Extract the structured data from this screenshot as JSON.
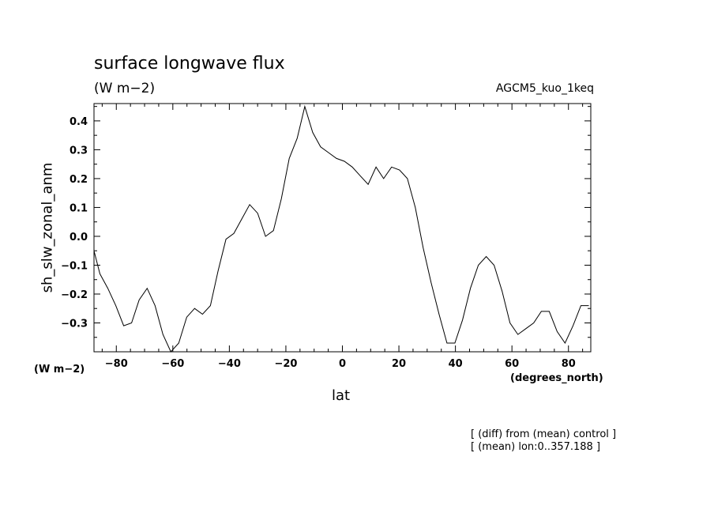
{
  "chart_data": {
    "type": "line",
    "title": "surface longwave flux",
    "subtitle": "(W m−2)",
    "dataset": "AGCM5_kuo_1keq",
    "ylabel": "sh_slw_zonal_anm",
    "xlabel": "lat",
    "y_unit_label": "(W m−2)",
    "x_unit_label": "(degrees_north)",
    "notes": [
      "[ (diff) from (mean) control ]",
      "[ (mean) lon:0..357.188 ]"
    ],
    "xlim": [
      -87.9,
      87.9
    ],
    "ylim": [
      -0.4,
      0.46
    ],
    "xticks": [
      -80,
      -60,
      -40,
      -20,
      0,
      20,
      40,
      60,
      80
    ],
    "xtick_labels": [
      "−80",
      "−60",
      "−40",
      "−20",
      "0",
      "20",
      "40",
      "60",
      "80"
    ],
    "yticks": [
      -0.3,
      -0.2,
      -0.1,
      0.0,
      0.1,
      0.2,
      0.3,
      0.4
    ],
    "ytick_labels": [
      "−0.3",
      "−0.2",
      "−0.1",
      "0.0",
      "0.1",
      "0.2",
      "0.3",
      "0.4"
    ],
    "grid": false,
    "series": [
      {
        "color": "#000000",
        "x": [
          -87.9,
          -85.8,
          -83.0,
          -80.2,
          -77.4,
          -74.6,
          -71.9,
          -69.1,
          -66.3,
          -63.5,
          -60.7,
          -57.9,
          -55.1,
          -52.3,
          -49.5,
          -46.7,
          -44.0,
          -41.2,
          -38.4,
          -35.6,
          -32.8,
          -30.0,
          -27.2,
          -24.4,
          -21.6,
          -18.8,
          -16.0,
          -13.3,
          -10.5,
          -7.7,
          -4.9,
          -2.1,
          0.7,
          3.5,
          6.3,
          9.1,
          11.9,
          14.6,
          17.4,
          20.2,
          23.0,
          25.8,
          28.6,
          31.4,
          34.2,
          37.0,
          39.8,
          42.5,
          45.3,
          48.1,
          50.9,
          53.7,
          56.5,
          59.3,
          62.1,
          64.9,
          67.7,
          70.4,
          73.2,
          76.0,
          78.8,
          81.6,
          84.4,
          87.2
        ],
        "y": [
          -0.05,
          -0.13,
          -0.18,
          -0.24,
          -0.31,
          -0.3,
          -0.22,
          -0.18,
          -0.24,
          -0.34,
          -0.4,
          -0.37,
          -0.28,
          -0.25,
          -0.27,
          -0.24,
          -0.12,
          -0.01,
          0.01,
          0.06,
          0.11,
          0.08,
          0.0,
          0.02,
          0.13,
          0.27,
          0.34,
          0.45,
          0.36,
          0.31,
          0.29,
          0.27,
          0.26,
          0.24,
          0.21,
          0.18,
          0.24,
          0.2,
          0.24,
          0.23,
          0.2,
          0.1,
          -0.04,
          -0.16,
          -0.27,
          -0.37,
          -0.37,
          -0.29,
          -0.18,
          -0.1,
          -0.07,
          -0.1,
          -0.19,
          -0.3,
          -0.34,
          -0.32,
          -0.3,
          -0.26,
          -0.26,
          -0.33,
          -0.37,
          -0.31,
          -0.24,
          -0.24
        ]
      }
    ]
  }
}
